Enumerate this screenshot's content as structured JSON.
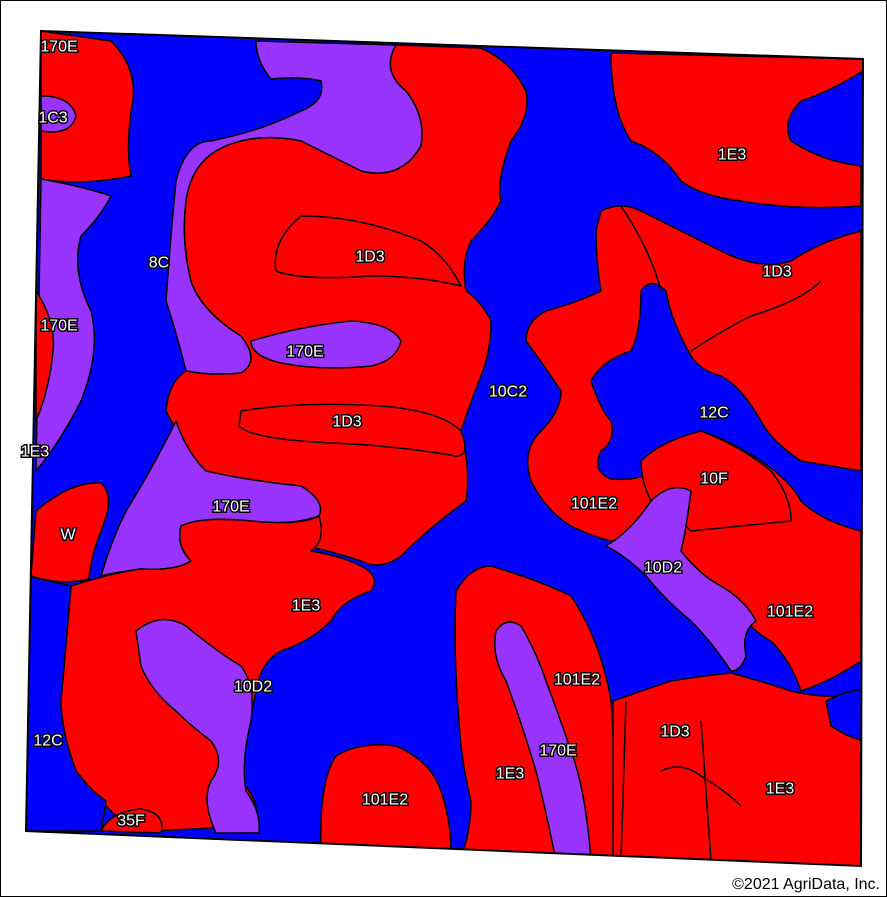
{
  "colors": {
    "red": "#ff0000",
    "blue": "#0000ff",
    "purple": "#9933ff",
    "line": "#000000"
  },
  "labels": {
    "l1": "170E",
    "l2": "1C3",
    "l3": "8C",
    "l4": "1D3",
    "l5": "1E3",
    "l6": "1D3",
    "l7": "170E",
    "l8": "170E",
    "l9": "10C2",
    "l10": "12C",
    "l11": "1D3",
    "l12": "1E3",
    "l13": "10F",
    "l14": "W",
    "l15": "170E",
    "l16": "101E2",
    "l17": "10D2",
    "l18": "1E3",
    "l19": "101E2",
    "l20": "10D2",
    "l21": "101E2",
    "l22": "1D3",
    "l23": "12C",
    "l24": "170E",
    "l25": "1E3",
    "l26": "1E3",
    "l27": "101E2",
    "l28": "35F"
  },
  "footer": {
    "copyright": "©2021 AgriData, Inc."
  }
}
